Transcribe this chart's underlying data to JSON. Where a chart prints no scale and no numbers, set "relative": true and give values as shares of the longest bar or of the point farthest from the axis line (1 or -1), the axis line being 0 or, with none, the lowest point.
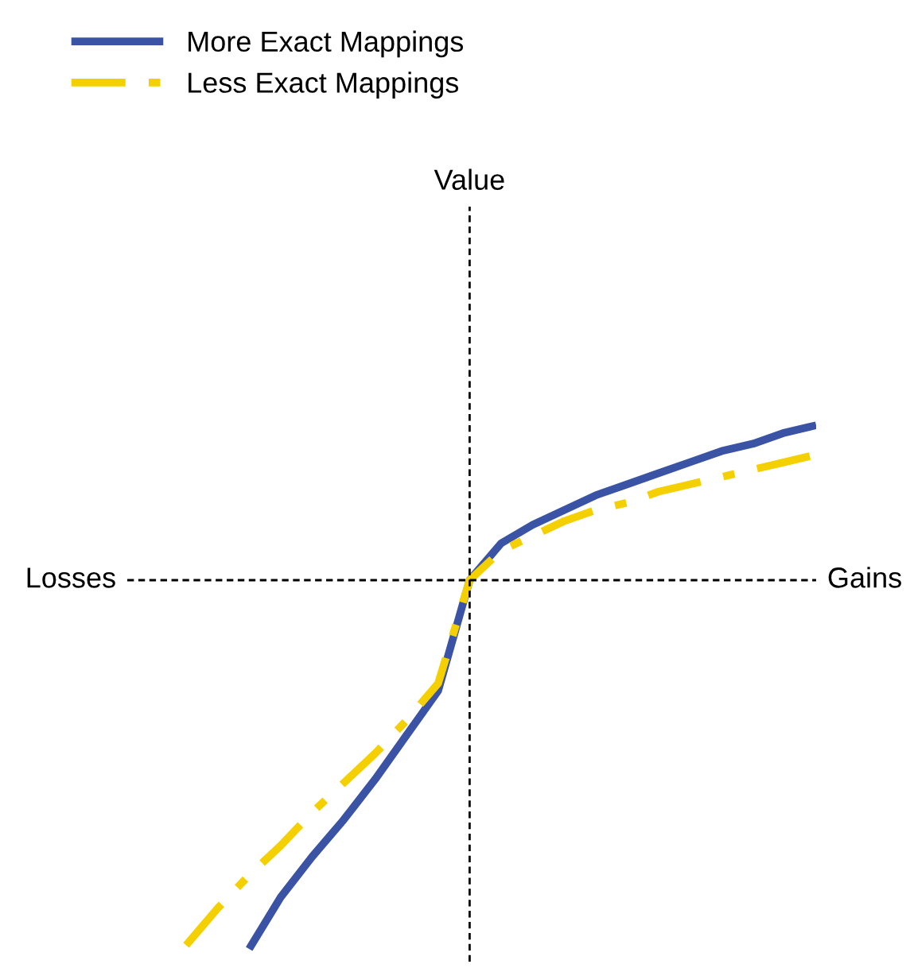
{
  "chart_data": {
    "type": "line",
    "relative": true,
    "annotations": [
      "Value",
      "Losses",
      "Gains"
    ],
    "legend": "top left",
    "categories": [
      null,
      null,
      null,
      null,
      null,
      null,
      null,
      null,
      null,
      null,
      null,
      null,
      null,
      null,
      null,
      null,
      null,
      null,
      null,
      null,
      null
    ],
    "series": [
      {
        "name": "More Exact Mappings",
        "color": "#3a53a4",
        "line_style": "solid",
        "values": [
          null,
          null,
          -1,
          -0.86,
          -0.75,
          -0.65,
          -0.54,
          -0.42,
          -0.3,
          0,
          0.1,
          0.15,
          0.19,
          0.23,
          0.26,
          0.29,
          0.32,
          0.35,
          0.37,
          0.4,
          0.42
        ]
      },
      {
        "name": "Less Exact Mappings",
        "color": "#f5d000",
        "line_style": "dashed",
        "values": [
          -0.99,
          -0.89,
          -0.8,
          -0.72,
          -0.63,
          -0.55,
          -0.47,
          -0.38,
          -0.28,
          0,
          0.08,
          0.12,
          0.16,
          0.19,
          0.21,
          0.24,
          0.26,
          0.28,
          0.3,
          0.32,
          0.34
        ]
      }
    ]
  }
}
